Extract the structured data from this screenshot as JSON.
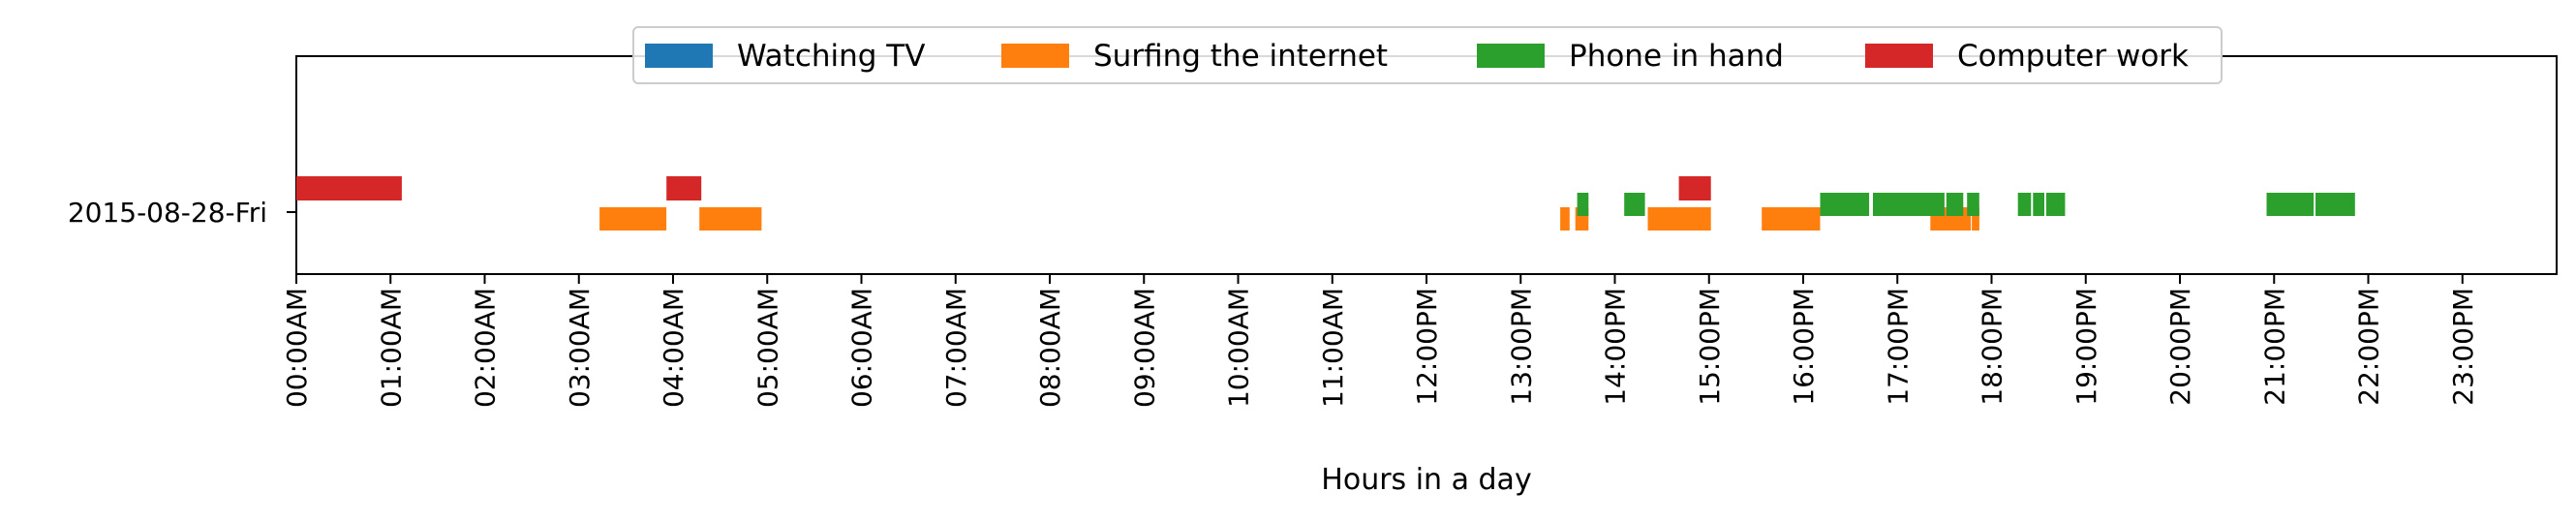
{
  "chart_data": {
    "type": "timeline",
    "xlabel": "Hours in a day",
    "xlim": [
      0,
      24
    ],
    "x_ticks": [
      {
        "value": 0,
        "label": "00:00AM"
      },
      {
        "value": 1,
        "label": "01:00AM"
      },
      {
        "value": 2,
        "label": "02:00AM"
      },
      {
        "value": 3,
        "label": "03:00AM"
      },
      {
        "value": 4,
        "label": "04:00AM"
      },
      {
        "value": 5,
        "label": "05:00AM"
      },
      {
        "value": 6,
        "label": "06:00AM"
      },
      {
        "value": 7,
        "label": "07:00AM"
      },
      {
        "value": 8,
        "label": "08:00AM"
      },
      {
        "value": 9,
        "label": "09:00AM"
      },
      {
        "value": 10,
        "label": "10:00AM"
      },
      {
        "value": 11,
        "label": "11:00AM"
      },
      {
        "value": 12,
        "label": "12:00PM"
      },
      {
        "value": 13,
        "label": "13:00PM"
      },
      {
        "value": 14,
        "label": "14:00PM"
      },
      {
        "value": 15,
        "label": "15:00PM"
      },
      {
        "value": 16,
        "label": "16:00PM"
      },
      {
        "value": 17,
        "label": "17:00PM"
      },
      {
        "value": 18,
        "label": "18:00PM"
      },
      {
        "value": 19,
        "label": "19:00PM"
      },
      {
        "value": 20,
        "label": "20:00PM"
      },
      {
        "value": 21,
        "label": "21:00PM"
      },
      {
        "value": 22,
        "label": "22:00PM"
      },
      {
        "value": 23,
        "label": "23:00PM"
      }
    ],
    "y_category": "2015-08-28-Fri",
    "legend_position": "top-center",
    "grid": false,
    "series": [
      {
        "name": "Watching TV",
        "color": "#1f77b4",
        "intervals": []
      },
      {
        "name": "Surfing the internet",
        "color": "#ff7f0e",
        "intervals": [
          [
            3.22,
            3.93
          ],
          [
            4.28,
            4.94
          ],
          [
            13.42,
            13.52
          ],
          [
            13.58,
            13.72
          ],
          [
            14.35,
            15.02
          ],
          [
            15.56,
            16.18
          ],
          [
            17.35,
            17.78
          ],
          [
            17.79,
            17.87
          ]
        ]
      },
      {
        "name": "Phone in hand",
        "color": "#2ca02c",
        "intervals": [
          [
            13.6,
            13.72
          ],
          [
            14.1,
            14.32
          ],
          [
            16.18,
            16.7
          ],
          [
            16.74,
            17.5
          ],
          [
            17.52,
            17.7
          ],
          [
            17.74,
            17.87
          ],
          [
            18.28,
            18.42
          ],
          [
            18.44,
            18.56
          ],
          [
            18.58,
            18.78
          ],
          [
            20.92,
            21.42
          ],
          [
            21.44,
            21.86
          ]
        ]
      },
      {
        "name": "Computer work",
        "color": "#d62728",
        "intervals": [
          [
            0.0,
            1.12
          ],
          [
            3.93,
            4.3
          ],
          [
            14.68,
            15.02
          ]
        ]
      }
    ]
  }
}
